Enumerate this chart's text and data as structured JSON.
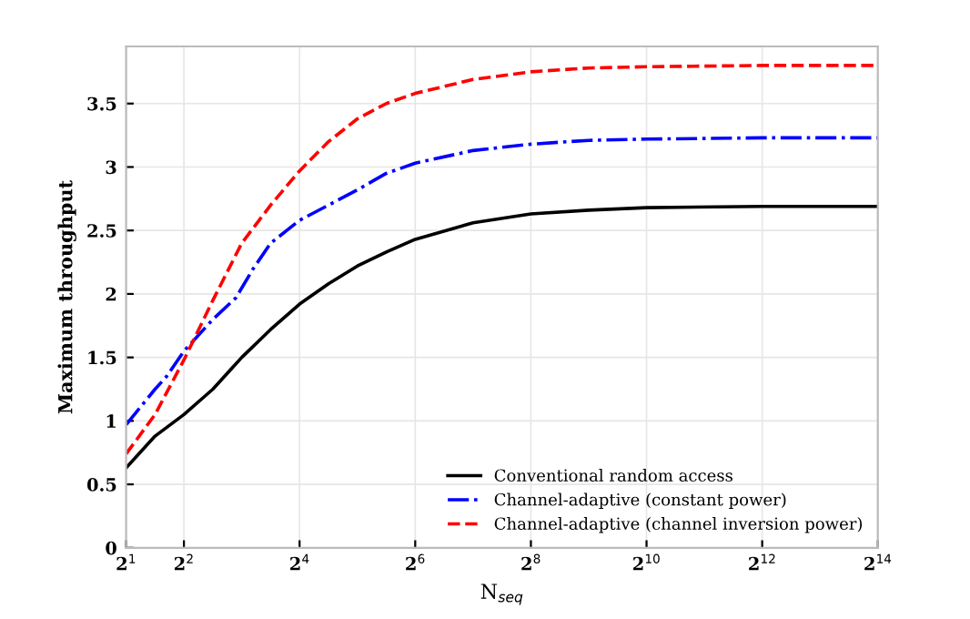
{
  "chart_data": {
    "type": "line",
    "xlabel": "N$_{seq}$",
    "ylabel": "Maximum throughput",
    "log": "x",
    "xlim": [
      2,
      16384
    ],
    "ylim": [
      0,
      3.95
    ],
    "xticks": [
      {
        "value": 2,
        "label": "2$^{1}$"
      },
      {
        "value": 4,
        "label": "2$^{2}$"
      },
      {
        "value": 16,
        "label": "2$^{4}$"
      },
      {
        "value": 64,
        "label": "2$^{6}$"
      },
      {
        "value": 256,
        "label": "2$^{8}$"
      },
      {
        "value": 1024,
        "label": "2$^{10}$"
      },
      {
        "value": 4096,
        "label": "2$^{12}$"
      },
      {
        "value": 16384,
        "label": "2$^{14}$"
      }
    ],
    "yticks": [
      0,
      0.5,
      1,
      1.5,
      2,
      2.5,
      3,
      3.5
    ],
    "grid": true,
    "legend": "bottom right",
    "marker": "none",
    "series": [
      {
        "name": "Conventional random access",
        "color": "#000000",
        "line_style": "solid",
        "x": [
          2,
          2.83,
          4,
          5.66,
          8,
          11.31,
          16,
          22.63,
          32,
          45.25,
          64,
          128,
          256,
          512,
          1024,
          4096,
          16384
        ],
        "values": [
          0.63,
          0.88,
          1.05,
          1.25,
          1.5,
          1.72,
          1.92,
          2.08,
          2.22,
          2.33,
          2.43,
          2.56,
          2.63,
          2.66,
          2.68,
          2.69,
          2.69
        ]
      },
      {
        "name": "Channel-adaptive (constant power)",
        "color": "#0000ff",
        "line_style": "dashdot",
        "x": [
          2,
          2.83,
          3.25,
          4,
          5.66,
          7.46,
          9.19,
          11.31,
          16,
          22.63,
          32,
          45.25,
          64,
          128,
          256,
          512,
          1024,
          4096,
          16384
        ],
        "values": [
          0.97,
          1.25,
          1.35,
          1.55,
          1.8,
          1.97,
          2.2,
          2.4,
          2.58,
          2.7,
          2.82,
          2.95,
          3.03,
          3.13,
          3.18,
          3.21,
          3.22,
          3.23,
          3.23
        ]
      },
      {
        "name": "Channel-adaptive (channel inversion power)",
        "color": "#ff0000",
        "line_style": "dashed",
        "x": [
          2,
          2.83,
          4,
          5.66,
          8,
          11.31,
          16,
          22.63,
          32,
          45.25,
          64,
          128,
          256,
          512,
          1024,
          4096,
          16384
        ],
        "values": [
          0.74,
          1.05,
          1.48,
          1.95,
          2.4,
          2.7,
          2.97,
          3.2,
          3.38,
          3.5,
          3.58,
          3.69,
          3.75,
          3.78,
          3.79,
          3.8,
          3.8
        ]
      }
    ]
  }
}
